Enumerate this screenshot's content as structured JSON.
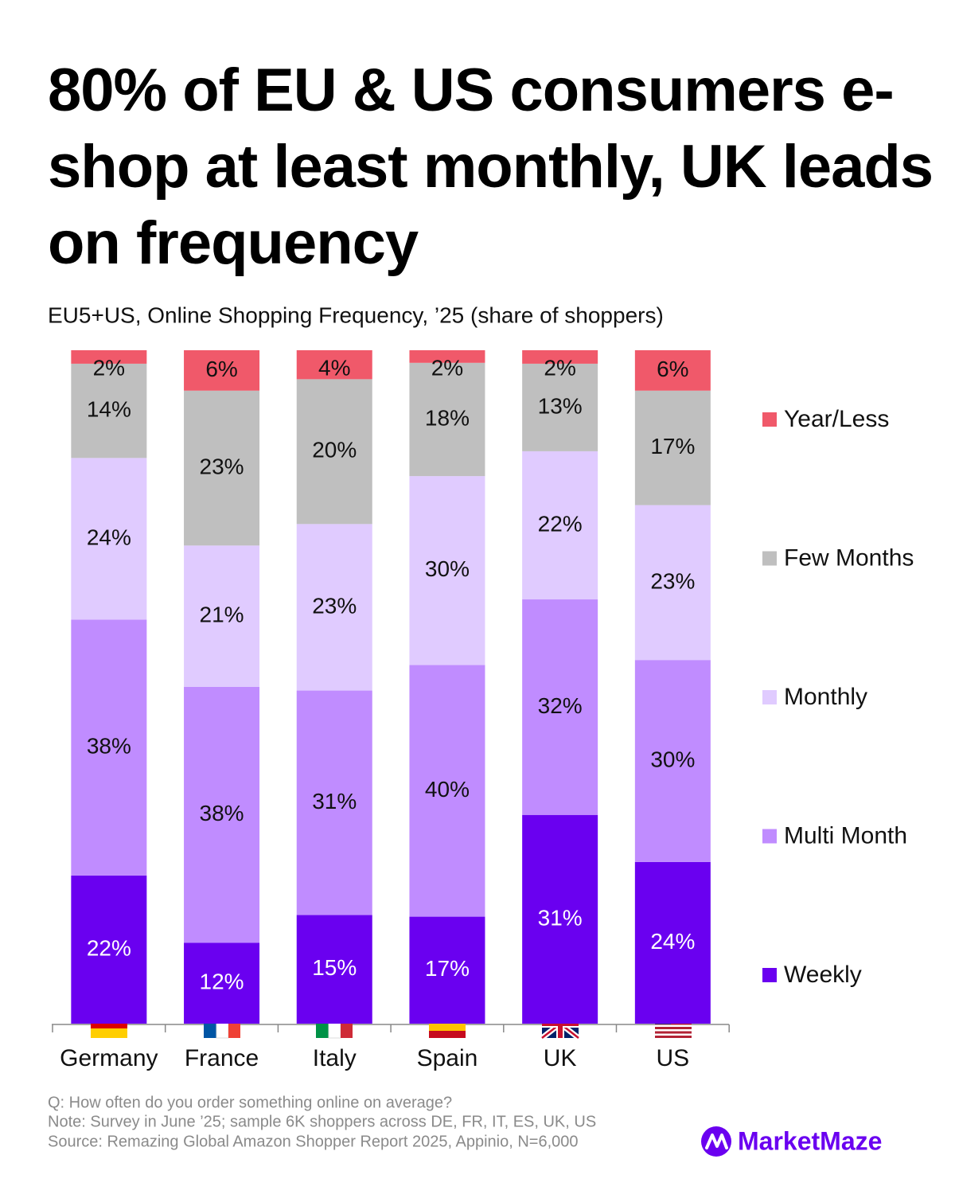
{
  "chart_data": {
    "type": "stacked_bar_percent",
    "title": "80% of EU & US consumers e-shop at least monthly, UK leads on frequency",
    "subtitle": "EU5+US, Online Shopping Frequency, ’25 (share of shoppers)",
    "categories": [
      "Germany",
      "France",
      "Italy",
      "Spain",
      "UK",
      "US"
    ],
    "series": [
      {
        "name": "Weekly",
        "color": "#6a00f0",
        "values": [
          22,
          12,
          15,
          17,
          31,
          24
        ],
        "value_labels": [
          "22%",
          "12%",
          "15%",
          "17%",
          "31%",
          "24%"
        ]
      },
      {
        "name": "Multi Month",
        "color": "#c08cff",
        "values": [
          38,
          38,
          31,
          40,
          32,
          30
        ],
        "value_labels": [
          "38%",
          "38%",
          "31%",
          "40%",
          "32%",
          "30%"
        ]
      },
      {
        "name": "Monthly",
        "color": "#e0cbff",
        "values": [
          24,
          21,
          23,
          30,
          22,
          23
        ],
        "value_labels": [
          "24%",
          "21%",
          "23%",
          "30%",
          "22%",
          "23%"
        ]
      },
      {
        "name": "Few Months",
        "color": "#bfbfbf",
        "values": [
          14,
          23,
          20,
          18,
          13,
          17
        ],
        "value_labels": [
          "14%",
          "23%",
          "20%",
          "18%",
          "13%",
          "17%"
        ]
      },
      {
        "name": "Year/Less",
        "color": "#f0596a",
        "values": [
          2,
          6,
          4,
          2,
          2,
          6
        ],
        "value_labels": [
          "2%",
          "6%",
          "4%",
          "2%",
          "2%",
          "6%"
        ]
      }
    ],
    "legend": "right",
    "notes": [
      "Q: How often do you order something online on average?",
      "Note: Survey in June ’25; sample 6K shoppers across DE, FR, IT, ES, UK, US",
      "Source: Remazing Global Amazon Shopper Report 2025, Appinio, N=6,000"
    ],
    "brand": "MarketMaze"
  }
}
